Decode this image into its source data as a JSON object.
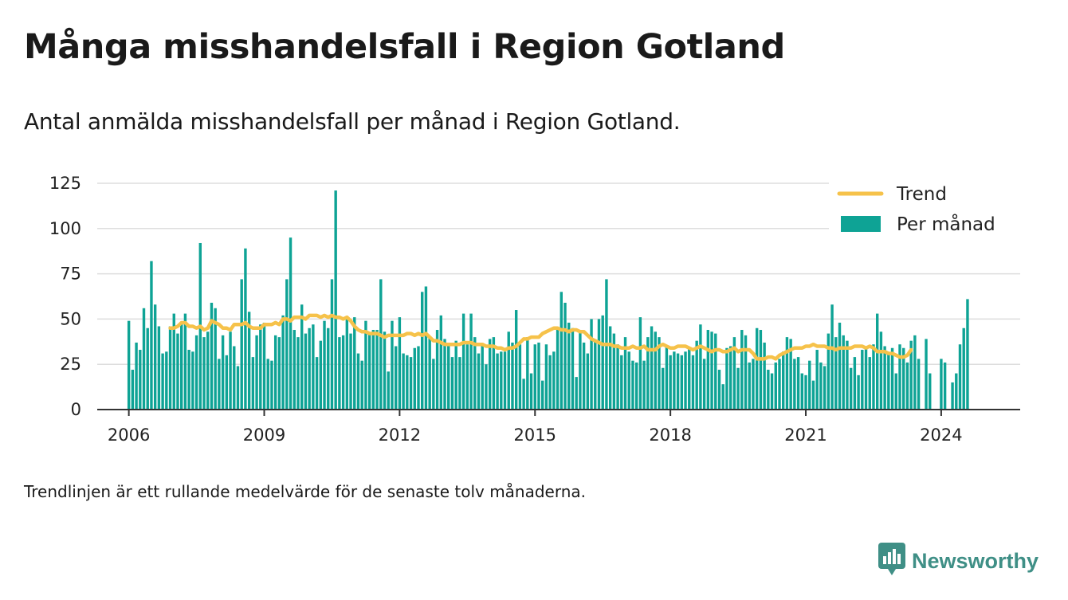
{
  "header": {
    "title": "Många misshandelsfall i Region Gotland",
    "subtitle": "Antal anmälda misshandelsfall per månad i Region Gotland."
  },
  "footnote": "Trendlinjen är ett rullande medelvärde för de senaste tolv månaderna.",
  "brand": {
    "name": "Newsworthy",
    "icon": "newsworthy-logo-icon"
  },
  "colors": {
    "bar": "#0ea395",
    "trend": "#f6c24a",
    "grid": "#dddddd",
    "axis": "#333333",
    "brand": "#3f8f86"
  },
  "chart_data": {
    "type": "bar",
    "x_start": "2006-01",
    "x_end": "2024-08",
    "xlim": [
      2005.3,
      2025.75
    ],
    "ylim": [
      0,
      125
    ],
    "xticks": [
      {
        "value": 2006,
        "label": "2006"
      },
      {
        "value": 2009,
        "label": "2009"
      },
      {
        "value": 2012,
        "label": "2012"
      },
      {
        "value": 2015,
        "label": "2015"
      },
      {
        "value": 2018,
        "label": "2018"
      },
      {
        "value": 2021,
        "label": "2021"
      },
      {
        "value": 2024,
        "label": "2024"
      }
    ],
    "yticks": [
      {
        "value": 0,
        "label": "0"
      },
      {
        "value": 25,
        "label": "25"
      },
      {
        "value": 50,
        "label": "50"
      },
      {
        "value": 75,
        "label": "75"
      },
      {
        "value": 100,
        "label": "100"
      },
      {
        "value": 125,
        "label": "125"
      }
    ],
    "grid": true,
    "legend_position": "top-right",
    "series": [
      {
        "name": "Per månad",
        "type": "bar",
        "values": [
          49,
          22,
          37,
          33,
          56,
          45,
          82,
          58,
          46,
          31,
          32,
          46,
          53,
          42,
          47,
          53,
          33,
          32,
          41,
          92,
          40,
          43,
          59,
          56,
          28,
          41,
          30,
          43,
          35,
          24,
          72,
          89,
          54,
          29,
          41,
          47,
          48,
          28,
          27,
          41,
          40,
          52,
          72,
          95,
          44,
          40,
          58,
          42,
          45,
          47,
          29,
          38,
          49,
          45,
          72,
          121,
          40,
          41,
          50,
          42,
          51,
          31,
          27,
          49,
          42,
          44,
          44,
          72,
          43,
          21,
          49,
          35,
          51,
          31,
          30,
          29,
          34,
          35,
          65,
          68,
          40,
          28,
          44,
          52,
          39,
          35,
          29,
          38,
          29,
          53,
          36,
          53,
          40,
          31,
          35,
          25,
          39,
          40,
          31,
          32,
          32,
          43,
          37,
          55,
          36,
          17,
          40,
          20,
          36,
          37,
          16,
          36,
          30,
          32,
          45,
          65,
          59,
          48,
          45,
          18,
          44,
          37,
          31,
          50,
          38,
          50,
          52,
          72,
          46,
          42,
          36,
          30,
          40,
          32,
          27,
          26,
          51,
          27,
          40,
          46,
          43,
          40,
          23,
          35,
          30,
          32,
          31,
          30,
          32,
          34,
          30,
          38,
          47,
          28,
          44,
          43,
          42,
          22,
          14,
          34,
          35,
          40,
          23,
          44,
          41,
          26,
          28,
          45,
          44,
          37,
          22,
          20,
          26,
          28,
          32,
          40,
          39,
          28,
          29,
          20,
          19,
          27,
          16,
          33,
          26,
          24,
          42,
          58,
          40,
          48,
          41,
          38,
          23,
          29,
          19,
          33,
          34,
          29,
          36,
          53,
          43,
          35,
          31,
          34,
          20,
          36,
          34,
          26,
          38,
          41,
          28,
          0,
          39,
          20,
          0,
          0,
          28,
          26,
          0,
          15,
          20,
          36,
          45,
          61
        ]
      },
      {
        "name": "Trend",
        "type": "line",
        "start": "2006-12",
        "values": [
          45,
          45,
          46,
          48,
          48,
          46,
          46,
          45,
          46,
          44,
          45,
          49,
          48,
          47,
          45,
          45,
          44,
          47,
          47,
          47,
          48,
          46,
          45,
          45,
          45,
          47,
          47,
          47,
          48,
          47,
          50,
          50,
          49,
          51,
          51,
          51,
          50,
          52,
          52,
          52,
          51,
          52,
          51,
          52,
          51,
          51,
          50,
          51,
          49,
          46,
          44,
          43,
          43,
          42,
          42,
          42,
          41,
          40,
          41,
          41,
          41,
          41,
          41,
          42,
          42,
          41,
          42,
          41,
          42,
          40,
          38,
          38,
          37,
          36,
          36,
          36,
          36,
          36,
          37,
          37,
          37,
          36,
          36,
          36,
          35,
          35,
          35,
          34,
          34,
          33,
          34,
          34,
          35,
          37,
          39,
          39,
          40,
          40,
          40,
          42,
          43,
          44,
          45,
          45,
          44,
          44,
          43,
          44,
          44,
          43,
          43,
          41,
          39,
          38,
          37,
          36,
          36,
          36,
          35,
          35,
          34,
          34,
          34,
          35,
          34,
          34,
          35,
          33,
          33,
          33,
          35,
          36,
          35,
          34,
          34,
          35,
          35,
          35,
          34,
          33,
          34,
          35,
          34,
          33,
          32,
          33,
          33,
          32,
          32,
          33,
          34,
          32,
          33,
          33,
          33,
          31,
          28,
          28,
          28,
          29,
          29,
          28,
          30,
          31,
          32,
          33,
          34,
          34,
          34,
          35,
          35,
          36,
          35,
          35,
          35,
          34,
          34,
          33,
          34,
          34,
          34,
          34,
          35,
          35,
          35,
          34,
          35,
          34,
          32,
          32,
          32,
          31,
          31,
          30,
          29,
          29,
          30,
          33
        ]
      }
    ]
  }
}
